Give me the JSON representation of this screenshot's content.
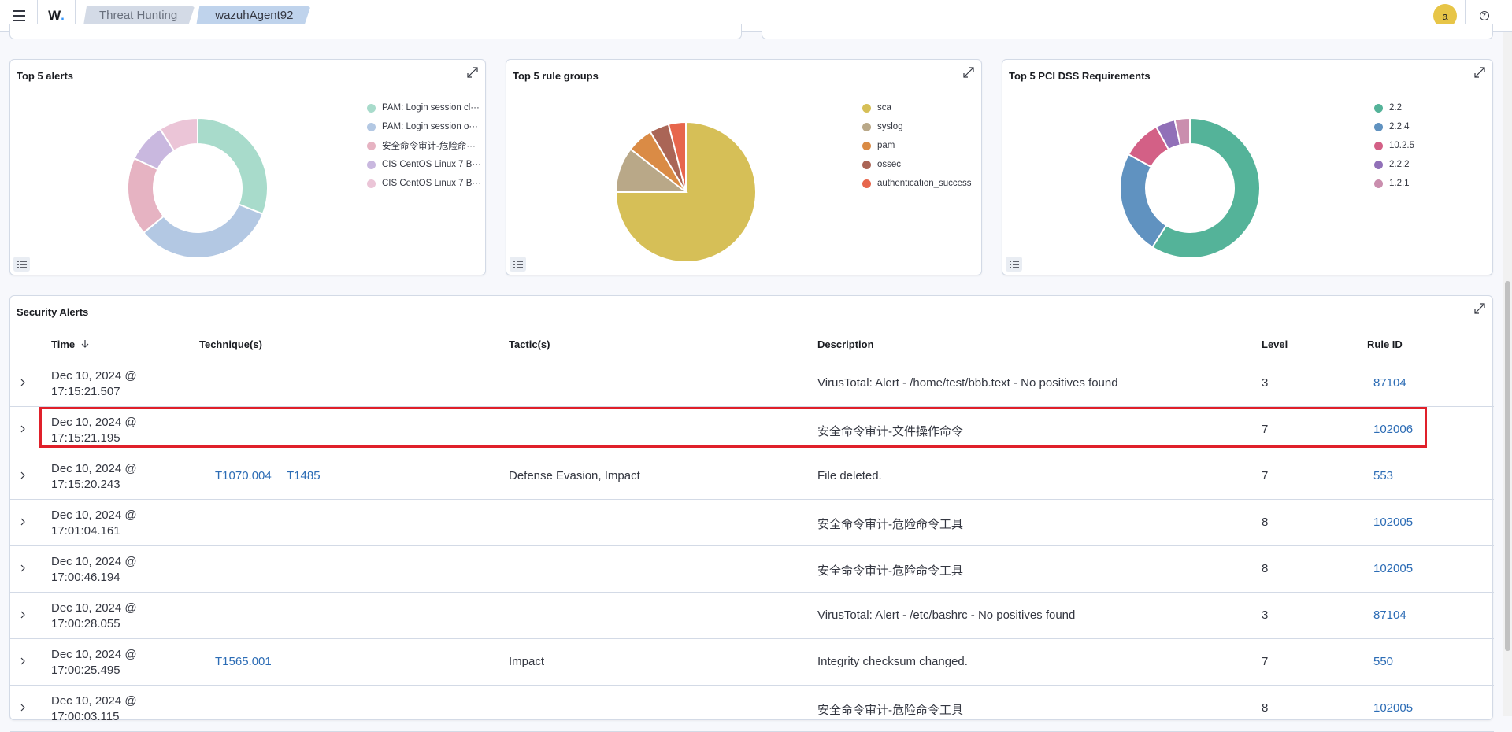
{
  "topbar": {
    "menu_icon": "hamburger-icon",
    "logo_text": "W",
    "logo_dot": ".",
    "breadcrumbs": [
      "Threat Hunting",
      "wazuhAgent92"
    ],
    "avatar_letter": "a",
    "help_icon": "help-icon"
  },
  "panels": {
    "top_alerts": {
      "title": "Top 5 alerts",
      "legend": [
        {
          "label": "PAM: Login session cl···",
          "color": "#a8dbcb"
        },
        {
          "label": "PAM: Login session o···",
          "color": "#b3c8e3"
        },
        {
          "label": "安全命令审计-危险命···",
          "color": "#e6b3c2"
        },
        {
          "label": "CIS CentOS Linux 7 B···",
          "color": "#c9b8df"
        },
        {
          "label": "CIS CentOS Linux 7 B···",
          "color": "#ebc5d7"
        }
      ],
      "slices": [
        0.31,
        0.33,
        0.18,
        0.09,
        0.09
      ]
    },
    "top_rule_groups": {
      "title": "Top 5 rule groups",
      "legend": [
        {
          "label": "sca",
          "color": "#d6bf57"
        },
        {
          "label": "syslog",
          "color": "#b9a888"
        },
        {
          "label": "pam",
          "color": "#da8b45"
        },
        {
          "label": "ossec",
          "color": "#aa6556"
        },
        {
          "label": "authentication_success",
          "color": "#e7664c"
        }
      ],
      "slices": [
        0.75,
        0.105,
        0.06,
        0.045,
        0.04
      ]
    },
    "top_pci": {
      "title": "Top 5 PCI DSS Requirements",
      "legend": [
        {
          "label": "2.2",
          "color": "#54b399"
        },
        {
          "label": "2.2.4",
          "color": "#6092c0"
        },
        {
          "label": "10.2.5",
          "color": "#d36086"
        },
        {
          "label": "2.2.2",
          "color": "#9170b8"
        },
        {
          "label": "1.2.1",
          "color": "#ca8eae"
        }
      ],
      "slices": [
        0.59,
        0.24,
        0.09,
        0.045,
        0.035
      ]
    }
  },
  "security_alerts": {
    "title": "Security Alerts",
    "columns": {
      "time": "Time",
      "sort_icon": "arrow-down-icon",
      "techniques": "Technique(s)",
      "tactics": "Tactic(s)",
      "description": "Description",
      "level": "Level",
      "rule_id": "Rule ID"
    },
    "rows": [
      {
        "date": "Dec 10, 2024 @",
        "time": "17:15:21.507",
        "techniques": [],
        "tactics": "",
        "description": "VirusTotal: Alert - /home/test/bbb.text - No positives found",
        "level": "3",
        "rule_id": "87104"
      },
      {
        "date": "Dec 10, 2024 @",
        "time": "17:15:21.195",
        "techniques": [],
        "tactics": "",
        "description": "安全命令审计-文件操作命令",
        "level": "7",
        "rule_id": "102006"
      },
      {
        "date": "Dec 10, 2024 @",
        "time": "17:15:20.243",
        "techniques": [
          "T1070.004",
          "T1485"
        ],
        "tactics": "Defense Evasion, Impact",
        "description": "File deleted.",
        "level": "7",
        "rule_id": "553"
      },
      {
        "date": "Dec 10, 2024 @",
        "time": "17:01:04.161",
        "techniques": [],
        "tactics": "",
        "description": "安全命令审计-危险命令工具",
        "level": "8",
        "rule_id": "102005"
      },
      {
        "date": "Dec 10, 2024 @",
        "time": "17:00:46.194",
        "techniques": [],
        "tactics": "",
        "description": "安全命令审计-危险命令工具",
        "level": "8",
        "rule_id": "102005"
      },
      {
        "date": "Dec 10, 2024 @",
        "time": "17:00:28.055",
        "techniques": [],
        "tactics": "",
        "description": "VirusTotal: Alert - /etc/bashrc - No positives found",
        "level": "3",
        "rule_id": "87104"
      },
      {
        "date": "Dec 10, 2024 @",
        "time": "17:00:25.495",
        "techniques": [
          "T1565.001"
        ],
        "tactics": "Impact",
        "description": "Integrity checksum changed.",
        "level": "7",
        "rule_id": "550"
      },
      {
        "date": "Dec 10, 2024 @",
        "time": "17:00:03.115",
        "techniques": [],
        "tactics": "",
        "description": "安全命令审计-危险命令工具",
        "level": "8",
        "rule_id": "102005"
      }
    ]
  }
}
